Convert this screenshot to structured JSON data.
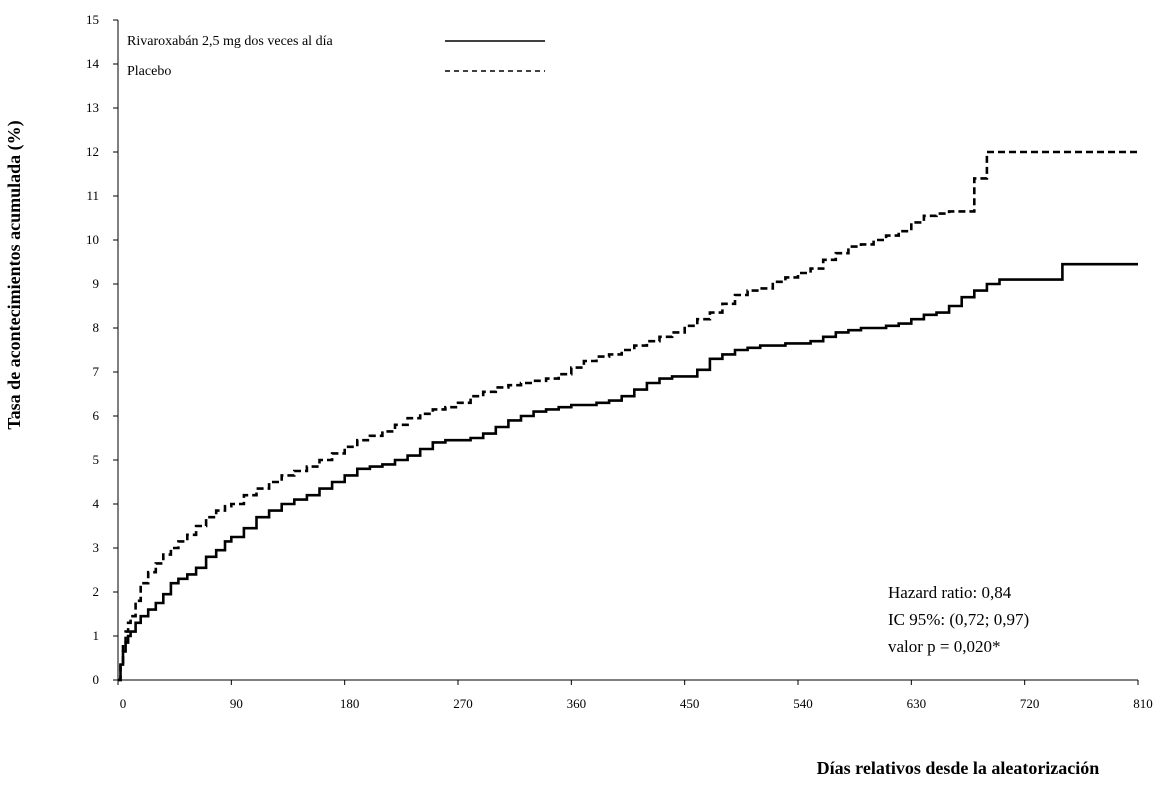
{
  "chart_data": {
    "type": "line",
    "title": "",
    "xlabel": "Días relativos desde la aleatorización",
    "ylabel": "Tasa de acontecimientos acumulada (%)",
    "xlim": [
      0,
      810
    ],
    "ylim": [
      0,
      15
    ],
    "xticks": [
      "0",
      "90",
      "180",
      "270",
      "360",
      "450",
      "540",
      "630",
      "720",
      "810"
    ],
    "yticks": [
      "0",
      "1",
      "2",
      "3",
      "4",
      "5",
      "6",
      "7",
      "8",
      "9",
      "10",
      "11",
      "12",
      "13",
      "14",
      "15"
    ],
    "grid": false,
    "legend_position": "top-left",
    "series": [
      {
        "name": "Rivaroxabán 2,5 mg dos veces al día",
        "line_style": "solid",
        "color": "#000000",
        "x": [
          0,
          2,
          4,
          6,
          8,
          10,
          14,
          18,
          24,
          30,
          36,
          42,
          48,
          55,
          62,
          70,
          78,
          85,
          90,
          100,
          110,
          120,
          130,
          140,
          150,
          160,
          170,
          180,
          190,
          200,
          210,
          220,
          230,
          240,
          250,
          260,
          270,
          280,
          290,
          300,
          310,
          320,
          330,
          340,
          350,
          360,
          370,
          380,
          390,
          400,
          410,
          420,
          430,
          440,
          450,
          460,
          470,
          480,
          490,
          500,
          510,
          520,
          530,
          540,
          550,
          560,
          570,
          580,
          590,
          600,
          610,
          620,
          630,
          640,
          650,
          660,
          670,
          680,
          690,
          700,
          710,
          720,
          730,
          740,
          750,
          760,
          770,
          780,
          790,
          800,
          810
        ],
        "y": [
          0,
          0.35,
          0.65,
          0.85,
          1.0,
          1.1,
          1.3,
          1.45,
          1.6,
          1.75,
          1.95,
          2.2,
          2.3,
          2.4,
          2.55,
          2.8,
          2.95,
          3.15,
          3.25,
          3.45,
          3.7,
          3.85,
          4.0,
          4.1,
          4.2,
          4.35,
          4.5,
          4.65,
          4.8,
          4.85,
          4.9,
          5.0,
          5.1,
          5.25,
          5.4,
          5.45,
          5.45,
          5.5,
          5.6,
          5.75,
          5.9,
          6.0,
          6.1,
          6.15,
          6.2,
          6.25,
          6.25,
          6.3,
          6.35,
          6.45,
          6.6,
          6.75,
          6.85,
          6.9,
          6.9,
          7.05,
          7.3,
          7.4,
          7.5,
          7.55,
          7.6,
          7.6,
          7.65,
          7.65,
          7.7,
          7.8,
          7.9,
          7.95,
          8.0,
          8.0,
          8.05,
          8.1,
          8.2,
          8.3,
          8.35,
          8.5,
          8.7,
          8.85,
          9.0,
          9.1,
          9.1,
          9.1,
          9.1,
          9.1,
          9.45,
          9.45,
          9.45,
          9.45,
          9.45,
          9.45,
          9.45
        ]
      },
      {
        "name": "Placebo",
        "line_style": "dashed",
        "color": "#000000",
        "x": [
          0,
          2,
          4,
          6,
          8,
          10,
          14,
          18,
          24,
          30,
          36,
          42,
          48,
          55,
          62,
          70,
          78,
          85,
          90,
          100,
          110,
          120,
          130,
          140,
          150,
          160,
          170,
          180,
          190,
          200,
          210,
          220,
          230,
          240,
          250,
          260,
          270,
          280,
          290,
          300,
          310,
          320,
          330,
          340,
          350,
          360,
          370,
          380,
          390,
          400,
          410,
          420,
          430,
          440,
          450,
          460,
          470,
          480,
          490,
          500,
          510,
          520,
          530,
          540,
          550,
          560,
          570,
          580,
          590,
          600,
          610,
          620,
          630,
          640,
          650,
          660,
          670,
          680,
          690,
          700,
          710,
          720,
          730,
          740,
          750,
          760,
          770,
          780,
          790,
          800,
          810
        ],
        "y": [
          0,
          0.4,
          0.8,
          1.1,
          1.3,
          1.45,
          1.8,
          2.2,
          2.45,
          2.65,
          2.85,
          3.0,
          3.15,
          3.3,
          3.5,
          3.7,
          3.85,
          3.95,
          4.0,
          4.2,
          4.35,
          4.5,
          4.65,
          4.75,
          4.85,
          5.0,
          5.15,
          5.3,
          5.45,
          5.55,
          5.65,
          5.8,
          5.95,
          6.05,
          6.15,
          6.2,
          6.3,
          6.45,
          6.55,
          6.65,
          6.7,
          6.75,
          6.8,
          6.85,
          6.95,
          7.1,
          7.25,
          7.35,
          7.4,
          7.5,
          7.6,
          7.7,
          7.8,
          7.9,
          8.05,
          8.2,
          8.35,
          8.55,
          8.75,
          8.85,
          8.9,
          9.05,
          9.15,
          9.25,
          9.35,
          9.55,
          9.7,
          9.85,
          9.9,
          10.0,
          10.1,
          10.2,
          10.4,
          10.55,
          10.6,
          10.65,
          10.65,
          11.4,
          12.0,
          12.0,
          12.0,
          12.0,
          12.0,
          12.0,
          12.0,
          12.0,
          12.0,
          12.0,
          12.0,
          12.0,
          12.0
        ]
      }
    ],
    "annotations": [
      "Hazard ratio: 0,84",
      "IC 95%: (0,72; 0,97)",
      "valor p = 0,020*"
    ]
  }
}
